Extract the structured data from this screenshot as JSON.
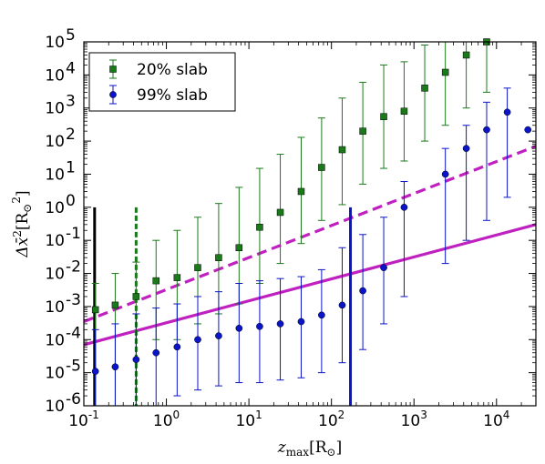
{
  "chart_data": {
    "type": "scatter",
    "title": "",
    "xlabel": {
      "base": "z",
      "sub": "max",
      "unit": "[R",
      "unit_sub": "⊙",
      "unit_close": "]"
    },
    "ylabel": {
      "base": "Δx̄",
      "sup": "2",
      "unit": "[R",
      "unit_sub": "⊙",
      "unit_sup": "2",
      "unit_close": "]"
    },
    "x_scale": "log",
    "y_scale": "log",
    "xlim": [
      0.1,
      30000
    ],
    "ylim": [
      1e-06,
      100000
    ],
    "x_ticks": [
      {
        "base": "10",
        "exp": "-1",
        "value": 0.1
      },
      {
        "base": "10",
        "exp": "0",
        "value": 1
      },
      {
        "base": "10",
        "exp": "1",
        "value": 10
      },
      {
        "base": "10",
        "exp": "2",
        "value": 100
      },
      {
        "base": "10",
        "exp": "3",
        "value": 1000
      },
      {
        "base": "10",
        "exp": "4",
        "value": 10000
      }
    ],
    "y_ticks": [
      {
        "base": "10",
        "exp": "-6",
        "value": 1e-06
      },
      {
        "base": "10",
        "exp": "-5",
        "value": 1e-05
      },
      {
        "base": "10",
        "exp": "-4",
        "value": 0.0001
      },
      {
        "base": "10",
        "exp": "-3",
        "value": 0.001
      },
      {
        "base": "10",
        "exp": "-2",
        "value": 0.01
      },
      {
        "base": "10",
        "exp": "-1",
        "value": 0.1
      },
      {
        "base": "10",
        "exp": "0",
        "value": 1
      },
      {
        "base": "10",
        "exp": "1",
        "value": 10
      },
      {
        "base": "10",
        "exp": "2",
        "value": 100
      },
      {
        "base": "10",
        "exp": "3",
        "value": 1000
      },
      {
        "base": "10",
        "exp": "4",
        "value": 10000
      },
      {
        "base": "10",
        "exp": "5",
        "value": 100000
      }
    ],
    "legend": {
      "position": "top-left"
    },
    "series": [
      {
        "name": "20% slab",
        "marker": "square",
        "color": "#1a7a1a",
        "points": [
          {
            "x": 0.138,
            "y": 0.0008,
            "lo": 1e-06,
            "hi": 0.005
          },
          {
            "x": 0.24,
            "y": 0.0011,
            "lo": 1e-06,
            "hi": 0.01
          },
          {
            "x": 0.43,
            "y": 0.002,
            "lo": 1e-06,
            "hi": 0.022
          },
          {
            "x": 0.75,
            "y": 0.006,
            "lo": 0.0001,
            "hi": 0.1
          },
          {
            "x": 1.35,
            "y": 0.0075,
            "lo": 0.0001,
            "hi": 0.2
          },
          {
            "x": 2.4,
            "y": 0.015,
            "lo": 0.0003,
            "hi": 0.5
          },
          {
            "x": 4.3,
            "y": 0.03,
            "lo": 0.0006,
            "hi": 1.3
          },
          {
            "x": 7.6,
            "y": 0.06,
            "lo": 0.0012,
            "hi": 4
          },
          {
            "x": 13.5,
            "y": 0.25,
            "lo": 0.005,
            "hi": 15
          },
          {
            "x": 24,
            "y": 0.7,
            "lo": 0.02,
            "hi": 40
          },
          {
            "x": 43,
            "y": 3,
            "lo": 0.08,
            "hi": 130
          },
          {
            "x": 76,
            "y": 16,
            "lo": 0.4,
            "hi": 500
          },
          {
            "x": 135,
            "y": 55,
            "lo": 1.2,
            "hi": 2000
          },
          {
            "x": 240,
            "y": 200,
            "lo": 5,
            "hi": 6000
          },
          {
            "x": 430,
            "y": 550,
            "lo": 15,
            "hi": 20000
          },
          {
            "x": 760,
            "y": 800,
            "lo": 25,
            "hi": 25000
          },
          {
            "x": 1350,
            "y": 4000,
            "lo": 100,
            "hi": 80000
          },
          {
            "x": 2400,
            "y": 12000,
            "lo": 300,
            "hi": 100000
          },
          {
            "x": 4300,
            "y": 40000,
            "lo": 1000,
            "hi": 100000
          },
          {
            "x": 7600,
            "y": 100000,
            "lo": 3000,
            "hi": 100000
          }
        ]
      },
      {
        "name": "99% slab",
        "marker": "circle",
        "color": "#0a14c8",
        "points": [
          {
            "x": 0.138,
            "y": 1.1e-05,
            "lo": 1e-06,
            "hi": 0.0002
          },
          {
            "x": 0.24,
            "y": 1.5e-05,
            "lo": 1e-06,
            "hi": 0.0003
          },
          {
            "x": 0.43,
            "y": 2.5e-05,
            "lo": 1e-06,
            "hi": 0.0006
          },
          {
            "x": 0.75,
            "y": 4e-05,
            "lo": 1e-06,
            "hi": 0.0009
          },
          {
            "x": 1.35,
            "y": 6e-05,
            "lo": 2e-06,
            "hi": 0.0012
          },
          {
            "x": 2.4,
            "y": 0.0001,
            "lo": 3e-06,
            "hi": 0.002
          },
          {
            "x": 4.3,
            "y": 0.00013,
            "lo": 4e-06,
            "hi": 0.0028
          },
          {
            "x": 7.6,
            "y": 0.00022,
            "lo": 5e-06,
            "hi": 0.005
          },
          {
            "x": 13.5,
            "y": 0.00025,
            "lo": 5e-06,
            "hi": 0.006
          },
          {
            "x": 24,
            "y": 0.0003,
            "lo": 6e-06,
            "hi": 0.007
          },
          {
            "x": 43,
            "y": 0.00035,
            "lo": 7e-06,
            "hi": 0.008
          },
          {
            "x": 76,
            "y": 0.00055,
            "lo": 1e-05,
            "hi": 0.013
          },
          {
            "x": 135,
            "y": 0.0011,
            "lo": 2e-05,
            "hi": 0.06
          },
          {
            "x": 240,
            "y": 0.003,
            "lo": 5e-05,
            "hi": 0.15
          },
          {
            "x": 430,
            "y": 0.015,
            "lo": 0.0003,
            "hi": 0.5
          },
          {
            "x": 760,
            "y": 1,
            "lo": 0.002,
            "hi": 6
          },
          {
            "x": 2400,
            "y": 10,
            "lo": 0.02,
            "hi": 60
          },
          {
            "x": 4300,
            "y": 60,
            "lo": 0.1,
            "hi": 300
          },
          {
            "x": 7600,
            "y": 220,
            "lo": 0.4,
            "hi": 1500
          },
          {
            "x": 13500,
            "y": 750,
            "lo": 2,
            "hi": 4000
          },
          {
            "x": 24000,
            "y": 220,
            "lo": 220,
            "hi": 220
          }
        ]
      }
    ],
    "reference_lines": [
      {
        "style": "solid",
        "color": "#c020c0",
        "from": {
          "x": 0.1,
          "y": 7e-05
        },
        "to": {
          "x": 30000,
          "y": 0.3
        }
      },
      {
        "style": "dashed",
        "color": "#c020c0",
        "from": {
          "x": 0.1,
          "y": 0.00035
        },
        "to": {
          "x": 30000,
          "y": 70
        }
      }
    ],
    "vertical_lines": [
      {
        "x": 0.135,
        "style": "solid",
        "color": "#000000",
        "y_top": 1
      },
      {
        "x": 0.43,
        "style": "dashed",
        "color": "#1a7a1a",
        "y_top": 1
      },
      {
        "x": 170,
        "style": "solid",
        "color": "#0a14c8",
        "y_top": 1
      }
    ]
  }
}
